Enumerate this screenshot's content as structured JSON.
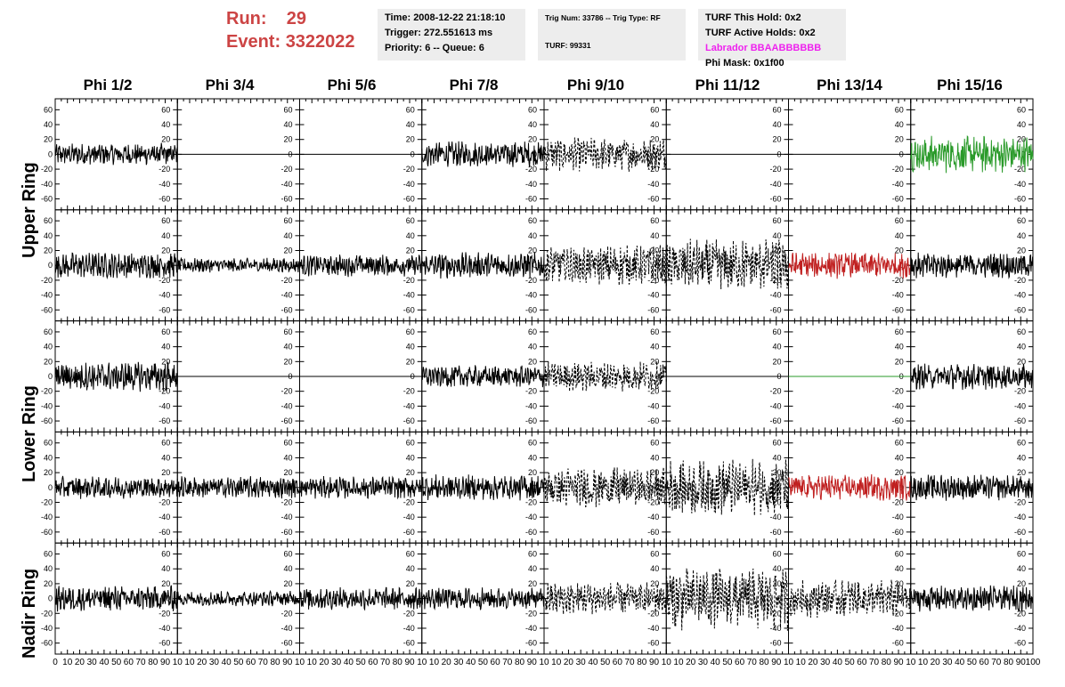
{
  "header": {
    "run_label": "Run:",
    "run_value": "29",
    "event_label": "Event:",
    "event_value": "3322022",
    "time": "Time: 2008-12-22 21:18:10",
    "trigger": "Trigger: 272.551613 ms",
    "priority": "Priority: 6 -- Queue: 6",
    "trig_num": "Trig Num: 33786 -- Trig Type: RF",
    "turf": "TURF: 99331",
    "turf_hold": "TURF This Hold: 0x2",
    "turf_active": "TURF Active Holds: 0x2",
    "labrador": "Labrador BBAABBBBBB",
    "phi_mask": "Phi Mask: 0x1f00"
  },
  "columns": [
    "Phi 1/2",
    "Phi 3/4",
    "Phi 5/6",
    "Phi 7/8",
    "Phi 9/10",
    "Phi 11/12",
    "Phi 13/14",
    "Phi 15/16"
  ],
  "rows": [
    "Upper Ring",
    "Lower Ring",
    "Nadir Ring"
  ],
  "colors": {
    "black": "#000000",
    "green": "#2a9a2a",
    "red": "#c02020",
    "run_text": "#cc4444",
    "magenta": "#ee22ee"
  },
  "chart_data": {
    "type": "line",
    "xlim": [
      0,
      100
    ],
    "ylim": [
      -70,
      70
    ],
    "y_ticks": [
      -60,
      -40,
      -20,
      0,
      20,
      40,
      60
    ],
    "x_ticks": [
      0,
      10,
      20,
      30,
      40,
      50,
      60,
      70,
      80,
      90,
      100
    ],
    "x_tick_labels_bottom": "0 10 20 30 40 50 60 70 80 90 10 10 20 30 40 50 60 70 80 90 10 10 20 30 40 50 60 70 80 90 10 10 20 30 40 50 60 70 80 90 10 10 20 30 40 50 60 70 80 90 10 10 20 30 40 50 60 70 80 90 10 10 20 30 40 50 60 70 80 90 10 10 20 30 40 50 60 70 80 90 100",
    "panel_rows": 5,
    "panel_cols": 8,
    "panels": [
      [
        {
          "amp": 12,
          "style": "solid",
          "color": "black"
        },
        {
          "amp": 0,
          "style": "flat",
          "color": "black"
        },
        {
          "amp": 0,
          "style": "flat",
          "color": "black"
        },
        {
          "amp": 14,
          "style": "solid",
          "color": "black"
        },
        {
          "amp": 18,
          "style": "dashed",
          "color": "black"
        },
        {
          "amp": 0,
          "style": "flat",
          "color": "black"
        },
        {
          "amp": 0,
          "style": "flat",
          "color": "black"
        },
        {
          "amp": 20,
          "style": "solid",
          "color": "green"
        }
      ],
      [
        {
          "amp": 14,
          "style": "solid",
          "color": "black"
        },
        {
          "amp": 8,
          "style": "solid",
          "color": "black"
        },
        {
          "amp": 12,
          "style": "solid",
          "color": "black"
        },
        {
          "amp": 14,
          "style": "solid",
          "color": "black"
        },
        {
          "amp": 22,
          "style": "dashed",
          "color": "black"
        },
        {
          "amp": 28,
          "style": "dashed",
          "color": "black"
        },
        {
          "amp": 14,
          "style": "solid",
          "color": "red"
        },
        {
          "amp": 14,
          "style": "solid",
          "color": "black"
        }
      ],
      [
        {
          "amp": 16,
          "style": "solid",
          "color": "black"
        },
        {
          "amp": 0,
          "style": "flat",
          "color": "black"
        },
        {
          "amp": 0,
          "style": "flat",
          "color": "black"
        },
        {
          "amp": 12,
          "style": "solid",
          "color": "black"
        },
        {
          "amp": 16,
          "style": "dashed",
          "color": "black"
        },
        {
          "amp": 0,
          "style": "flat",
          "color": "black"
        },
        {
          "amp": 0,
          "style": "flat",
          "color": "green"
        },
        {
          "amp": 14,
          "style": "solid",
          "color": "black"
        }
      ],
      [
        {
          "amp": 12,
          "style": "solid",
          "color": "black"
        },
        {
          "amp": 12,
          "style": "solid",
          "color": "black"
        },
        {
          "amp": 12,
          "style": "solid",
          "color": "black"
        },
        {
          "amp": 14,
          "style": "solid",
          "color": "black"
        },
        {
          "amp": 22,
          "style": "dashed",
          "color": "black"
        },
        {
          "amp": 30,
          "style": "dashed",
          "color": "black"
        },
        {
          "amp": 14,
          "style": "solid",
          "color": "red"
        },
        {
          "amp": 14,
          "style": "solid",
          "color": "black"
        }
      ],
      [
        {
          "amp": 14,
          "style": "solid",
          "color": "black"
        },
        {
          "amp": 8,
          "style": "solid",
          "color": "black"
        },
        {
          "amp": 12,
          "style": "solid",
          "color": "black"
        },
        {
          "amp": 12,
          "style": "solid",
          "color": "black"
        },
        {
          "amp": 18,
          "style": "dashed",
          "color": "black"
        },
        {
          "amp": 34,
          "style": "dashed",
          "color": "black"
        },
        {
          "amp": 20,
          "style": "dashed",
          "color": "black"
        },
        {
          "amp": 14,
          "style": "solid",
          "color": "black"
        }
      ]
    ]
  }
}
